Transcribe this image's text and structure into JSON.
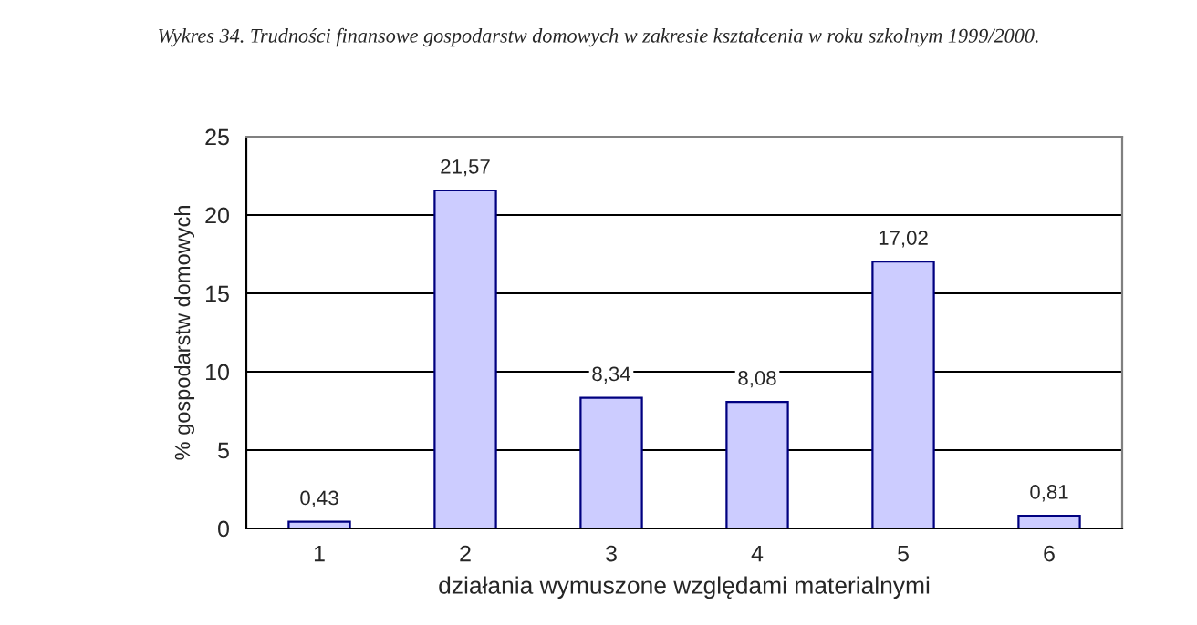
{
  "chart_data": {
    "type": "bar",
    "title": "Wykres 34. Trudności finansowe gospodarstw domowych w zakresie kształcenia w roku szkolnym 1999/2000.",
    "xlabel": "działania wymuszone względami materialnymi",
    "ylabel": "% gospodarstw domowych",
    "categories": [
      "1",
      "2",
      "3",
      "4",
      "5",
      "6"
    ],
    "values": [
      0.43,
      21.57,
      8.34,
      8.08,
      17.02,
      0.81
    ],
    "value_labels": [
      "0,43",
      "21,57",
      "8,34",
      "8,08",
      "17,02",
      "0,81"
    ],
    "color": "#ccccff",
    "ylim": [
      0,
      25
    ],
    "yticks": [
      0,
      5,
      10,
      15,
      20,
      25
    ],
    "grid": "y",
    "legend": false
  }
}
